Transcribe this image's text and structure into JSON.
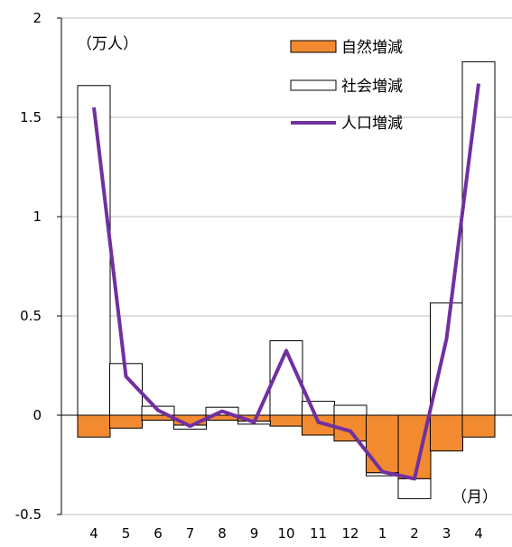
{
  "chart_data": {
    "type": "bar+line",
    "categories": [
      "4",
      "5",
      "6",
      "7",
      "8",
      "9",
      "10",
      "11",
      "12",
      "1",
      "2",
      "3",
      "4"
    ],
    "y_unit": "（万人）",
    "x_unit": "（月）",
    "ylim": [
      -0.5,
      2
    ],
    "yticks": [
      "-0.5",
      "0",
      "0.5",
      "1",
      "1.5",
      "2"
    ],
    "grid": true,
    "legend_placement": "top-right",
    "stacked": true,
    "series": [
      {
        "name": "自然増減",
        "type": "bar",
        "color": "#F28A30",
        "values": [
          -0.11,
          -0.065,
          -0.025,
          -0.05,
          -0.025,
          -0.03,
          -0.055,
          -0.1,
          -0.13,
          -0.29,
          -0.32,
          -0.18,
          -0.11
        ]
      },
      {
        "name": "社会増減",
        "type": "bar",
        "color": "#FFFFFF",
        "values": [
          1.66,
          0.26,
          0.045,
          -0.02,
          0.04,
          -0.015,
          0.375,
          0.07,
          0.05,
          -0.015,
          -0.1,
          0.565,
          1.78
        ]
      },
      {
        "name": "人口増減",
        "type": "line",
        "color": "#7030A0",
        "values": [
          1.55,
          0.195,
          0.025,
          -0.055,
          0.02,
          -0.035,
          0.325,
          -0.035,
          -0.08,
          -0.285,
          -0.32,
          0.385,
          1.67
        ]
      }
    ]
  }
}
